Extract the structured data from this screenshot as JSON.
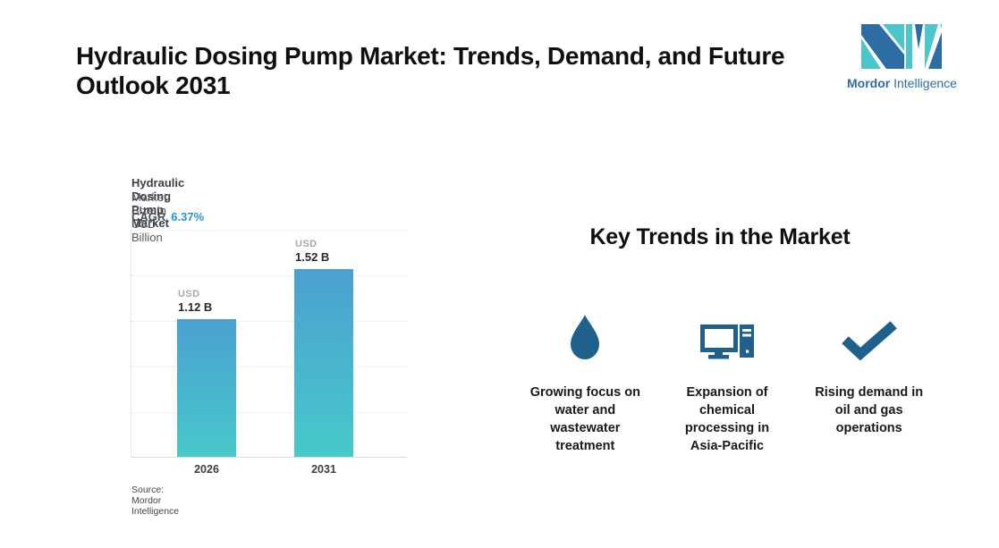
{
  "header": {
    "title": "Hydraulic Dosing Pump Market: Trends, Demand, and Future\nOutlook 2031"
  },
  "logo": {
    "brand_bold": "Mordor",
    "brand_regular": "Intelligence"
  },
  "chart": {
    "title": "Hydraulic Dosing Pump Market",
    "subtitle": "Market Size in USD Billion",
    "cagr_label": "CAGR",
    "cagr_value": "6.37%",
    "source": "Source: Mordor Intelligence",
    "bars": [
      {
        "year": "2026",
        "currency": "USD",
        "value_label": "1.12 B",
        "value": 1.12
      },
      {
        "year": "2031",
        "currency": "USD",
        "value_label": "1.52 B",
        "value": 1.52
      }
    ]
  },
  "chart_data": {
    "type": "bar",
    "categories": [
      "2026",
      "2031"
    ],
    "values": [
      1.12,
      1.52
    ],
    "title": "Hydraulic Dosing Pump Market",
    "subtitle": "Market Size in USD Billion",
    "cagr": "6.37%",
    "value_labels": [
      "USD 1.12 B",
      "USD 1.52 B"
    ],
    "xlabel": "",
    "ylabel": "Market Size in USD Billion",
    "ylim": [
      0,
      1.85
    ],
    "grid": "horizontal-dotted",
    "legend": "none",
    "source": "Source: Mordor Intelligence"
  },
  "trends": {
    "heading": "Key Trends in the Market",
    "items": [
      {
        "icon": "water-drop-icon",
        "text": "Growing focus on\nwater and\nwastewater\ntreatment"
      },
      {
        "icon": "desktop-computer-icon",
        "text": "Expansion of\nchemical\nprocessing in\nAsia-Pacific"
      },
      {
        "icon": "checkmark-icon",
        "text": "Rising demand in\noil and gas\noperations"
      }
    ]
  },
  "colors": {
    "accent_blue": "#2196d6",
    "icon_blue": "#1e618d",
    "bar_top": "#4ba0d0",
    "bar_bottom": "#47c9ca",
    "logo_blue": "#2d6da3",
    "logo_teal": "#4cc6cd"
  }
}
